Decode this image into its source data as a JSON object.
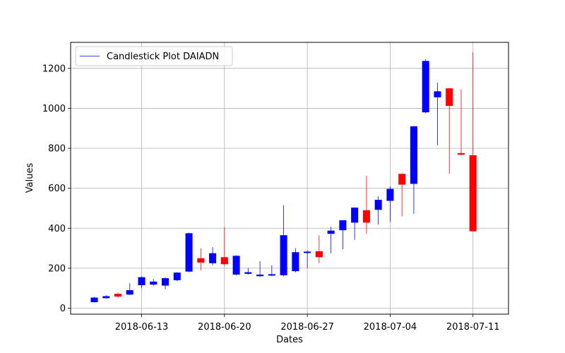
{
  "chart_data": {
    "type": "candlestick",
    "xlabel": "Dates",
    "ylabel": "Values",
    "legend": {
      "label": "Candlestick Plot DAIADN",
      "placement": "top-left"
    },
    "grid": true,
    "ylim": [
      -30,
      1330
    ],
    "xlim": [
      "2018-06-07",
      "2018-07-14"
    ],
    "x_ticks": [
      "2018-06-13",
      "2018-06-20",
      "2018-06-27",
      "2018-07-04",
      "2018-07-11"
    ],
    "y_ticks": [
      0,
      200,
      400,
      600,
      800,
      1000,
      1200
    ],
    "colors": {
      "up": "#0000ff",
      "down": "#ff0000",
      "grid": "#b0b0b0"
    },
    "candles": [
      {
        "date": "2018-06-09",
        "open": 30,
        "high": 57,
        "low": 28,
        "close": 53
      },
      {
        "date": "2018-06-10",
        "open": 50,
        "high": 65,
        "low": 48,
        "close": 60
      },
      {
        "date": "2018-06-11",
        "open": 72,
        "high": 78,
        "low": 55,
        "close": 58
      },
      {
        "date": "2018-06-12",
        "open": 68,
        "high": 125,
        "low": 65,
        "close": 90
      },
      {
        "date": "2018-06-13",
        "open": 115,
        "high": 160,
        "low": 100,
        "close": 155
      },
      {
        "date": "2018-06-14",
        "open": 118,
        "high": 145,
        "low": 112,
        "close": 133
      },
      {
        "date": "2018-06-15",
        "open": 113,
        "high": 155,
        "low": 95,
        "close": 150
      },
      {
        "date": "2018-06-16",
        "open": 140,
        "high": 180,
        "low": 135,
        "close": 178
      },
      {
        "date": "2018-06-17",
        "open": 183,
        "high": 378,
        "low": 180,
        "close": 375
      },
      {
        "date": "2018-06-18",
        "open": 250,
        "high": 300,
        "low": 190,
        "close": 228
      },
      {
        "date": "2018-06-19",
        "open": 225,
        "high": 305,
        "low": 215,
        "close": 275
      },
      {
        "date": "2018-06-20",
        "open": 255,
        "high": 405,
        "low": 210,
        "close": 220
      },
      {
        "date": "2018-06-21",
        "open": 168,
        "high": 265,
        "low": 165,
        "close": 262
      },
      {
        "date": "2018-06-22",
        "open": 172,
        "high": 200,
        "low": 168,
        "close": 180
      },
      {
        "date": "2018-06-23",
        "open": 160,
        "high": 235,
        "low": 155,
        "close": 168
      },
      {
        "date": "2018-06-24",
        "open": 165,
        "high": 215,
        "low": 160,
        "close": 170
      },
      {
        "date": "2018-06-25",
        "open": 165,
        "high": 515,
        "low": 160,
        "close": 365
      },
      {
        "date": "2018-06-26",
        "open": 185,
        "high": 300,
        "low": 180,
        "close": 280
      },
      {
        "date": "2018-06-27",
        "open": 278,
        "high": 290,
        "low": 200,
        "close": 283
      },
      {
        "date": "2018-06-28",
        "open": 285,
        "high": 365,
        "low": 225,
        "close": 255
      },
      {
        "date": "2018-06-29",
        "open": 372,
        "high": 408,
        "low": 275,
        "close": 388
      },
      {
        "date": "2018-06-30",
        "open": 390,
        "high": 440,
        "low": 295,
        "close": 440
      },
      {
        "date": "2018-07-01",
        "open": 428,
        "high": 505,
        "low": 342,
        "close": 503
      },
      {
        "date": "2018-07-02",
        "open": 490,
        "high": 662,
        "low": 372,
        "close": 428
      },
      {
        "date": "2018-07-03",
        "open": 492,
        "high": 560,
        "low": 418,
        "close": 542
      },
      {
        "date": "2018-07-04",
        "open": 537,
        "high": 610,
        "low": 432,
        "close": 597
      },
      {
        "date": "2018-07-05",
        "open": 672,
        "high": 675,
        "low": 460,
        "close": 618
      },
      {
        "date": "2018-07-06",
        "open": 622,
        "high": 912,
        "low": 472,
        "close": 910
      },
      {
        "date": "2018-07-07",
        "open": 980,
        "high": 1245,
        "low": 975,
        "close": 1237
      },
      {
        "date": "2018-07-08",
        "open": 1055,
        "high": 1128,
        "low": 815,
        "close": 1085
      },
      {
        "date": "2018-07-09",
        "open": 1100,
        "high": 1102,
        "low": 672,
        "close": 1012
      },
      {
        "date": "2018-07-10",
        "open": 776,
        "high": 1095,
        "low": 765,
        "close": 768
      },
      {
        "date": "2018-07-11",
        "open": 765,
        "high": 1280,
        "low": 382,
        "close": 385
      }
    ]
  }
}
